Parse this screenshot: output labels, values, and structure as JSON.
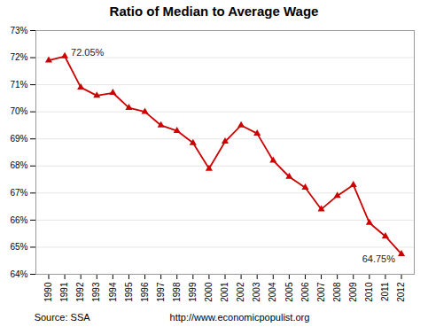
{
  "chart_data": {
    "type": "line",
    "title": "Ratio of Median to Average Wage",
    "x": [
      1990,
      1991,
      1992,
      1993,
      1994,
      1995,
      1996,
      1997,
      1998,
      1999,
      2000,
      2001,
      2002,
      2003,
      2004,
      2005,
      2006,
      2007,
      2008,
      2009,
      2010,
      2011,
      2012
    ],
    "values": [
      71.9,
      72.05,
      70.9,
      70.6,
      70.7,
      70.15,
      70.0,
      69.5,
      69.3,
      68.85,
      67.9,
      68.9,
      69.5,
      69.2,
      68.2,
      67.6,
      67.2,
      66.4,
      66.9,
      67.3,
      65.9,
      65.4,
      64.75
    ],
    "color": "#cc0000",
    "marker": "triangle",
    "xlim": [
      1989.2,
      2012.8
    ],
    "xticks": [
      1990,
      1991,
      1992,
      1993,
      1994,
      1995,
      1996,
      1997,
      1998,
      1999,
      2000,
      2001,
      2002,
      2003,
      2004,
      2005,
      2006,
      2007,
      2008,
      2009,
      2010,
      2011,
      2012
    ],
    "ylim": [
      64,
      73
    ],
    "yticks": [
      {
        "value": 64,
        "label": "64%"
      },
      {
        "value": 65,
        "label": "65%"
      },
      {
        "value": 66,
        "label": "66%"
      },
      {
        "value": 67,
        "label": "67%"
      },
      {
        "value": 68,
        "label": "68%"
      },
      {
        "value": 69,
        "label": "69%"
      },
      {
        "value": 70,
        "label": "70%"
      },
      {
        "value": 71,
        "label": "71%"
      },
      {
        "value": 72,
        "label": "72%"
      },
      {
        "value": 73,
        "label": "73%"
      }
    ],
    "grid": true,
    "annotations": [
      {
        "text": "72.05%",
        "x": 1991,
        "y": 72.05
      },
      {
        "text": "64.75%",
        "x": 2012,
        "y": 64.75
      }
    ],
    "source": "Source: SSA",
    "url": "http://www.economicpopulist.org"
  }
}
